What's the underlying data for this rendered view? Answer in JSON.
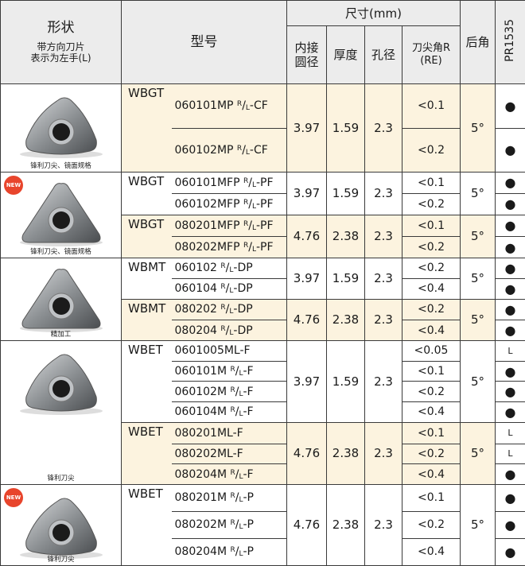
{
  "header": {
    "shape": "形状",
    "shape_note": "带方向刀片\n表示为左手(L)",
    "model": "型号",
    "size": "尺寸(mm)",
    "ic": "内接\n圆径",
    "thickness": "厚度",
    "hole": "孔径",
    "corner_radius": "刀尖角R\n(RE)",
    "relief_angle": "后角",
    "grade": "PR1535"
  },
  "groups": [
    {
      "caption": "锋利刀尖、镜面规格",
      "subgroups": [
        {
          "series": "WBGT",
          "models": [
            "060101MP R/L-CF",
            "060102MP R/L-CF"
          ],
          "ic": 3.97,
          "thickness": 1.59,
          "hole": 2.3,
          "corner_radius": [
            "<0.1",
            "<0.2"
          ],
          "relief_angle": "5°",
          "grade": [
            "●",
            "●"
          ]
        }
      ]
    },
    {
      "badge": "NEW",
      "caption": "锋利刀尖、镜面规格",
      "subgroups": [
        {
          "series": "WBGT",
          "models": [
            "060101MFP R/L-PF",
            "060102MFP R/L-PF"
          ],
          "ic": 3.97,
          "thickness": 1.59,
          "hole": 2.3,
          "corner_radius": [
            "<0.1",
            "<0.2"
          ],
          "relief_angle": "5°",
          "grade": [
            "●",
            "●"
          ]
        },
        {
          "series": "WBGT",
          "models": [
            "080201MFP R/L-PF",
            "080202MFP R/L-PF"
          ],
          "ic": 4.76,
          "thickness": 2.38,
          "hole": 2.3,
          "corner_radius": [
            "<0.1",
            "<0.2"
          ],
          "relief_angle": "5°",
          "grade": [
            "●",
            "●"
          ]
        }
      ]
    },
    {
      "caption": "精加工",
      "subgroups": [
        {
          "series": "WBMT",
          "models": [
            "060102 R/L-DP",
            "060104 R/L-DP"
          ],
          "ic": 3.97,
          "thickness": 1.59,
          "hole": 2.3,
          "corner_radius": [
            "<0.2",
            "<0.4"
          ],
          "relief_angle": "5°",
          "grade": [
            "●",
            "●"
          ]
        },
        {
          "series": "WBMT",
          "models": [
            "080202 R/L-DP",
            "080204 R/L-DP"
          ],
          "ic": 4.76,
          "thickness": 2.38,
          "hole": 2.3,
          "corner_radius": [
            "<0.2",
            "<0.4"
          ],
          "relief_angle": "5°",
          "grade": [
            "●",
            "●"
          ]
        }
      ]
    },
    {
      "caption": "锋利刀尖",
      "subgroups": [
        {
          "series": "WBET",
          "models": [
            "0601005ML-F",
            "060101M R/L-F",
            "060102M R/L-F",
            "060104M R/L-F"
          ],
          "ic": 3.97,
          "thickness": 1.59,
          "hole": 2.3,
          "corner_radius": [
            "<0.05",
            "<0.1",
            "<0.2",
            "<0.4"
          ],
          "relief_angle": "5°",
          "grade": [
            "L",
            "●",
            "●",
            "●"
          ]
        },
        {
          "series": "WBET",
          "models": [
            "080201ML-F",
            "080202ML-F",
            "080204M R/L-F"
          ],
          "ic": 4.76,
          "thickness": 2.38,
          "hole": 2.3,
          "corner_radius": [
            "<0.1",
            "<0.2",
            "<0.4"
          ],
          "relief_angle": "5°",
          "grade": [
            "L",
            "L",
            "●"
          ]
        }
      ]
    },
    {
      "badge": "NEW",
      "caption": "锋利刀尖",
      "subgroups": [
        {
          "series": "WBET",
          "models": [
            "080201M R/L-P",
            "080202M R/L-P",
            "080204M R/L-P"
          ],
          "ic": 4.76,
          "thickness": 2.38,
          "hole": 2.3,
          "corner_radius": [
            "<0.1",
            "<0.2",
            "<0.4"
          ],
          "relief_angle": "5°",
          "grade": [
            "●",
            "●",
            "●"
          ]
        }
      ]
    }
  ]
}
